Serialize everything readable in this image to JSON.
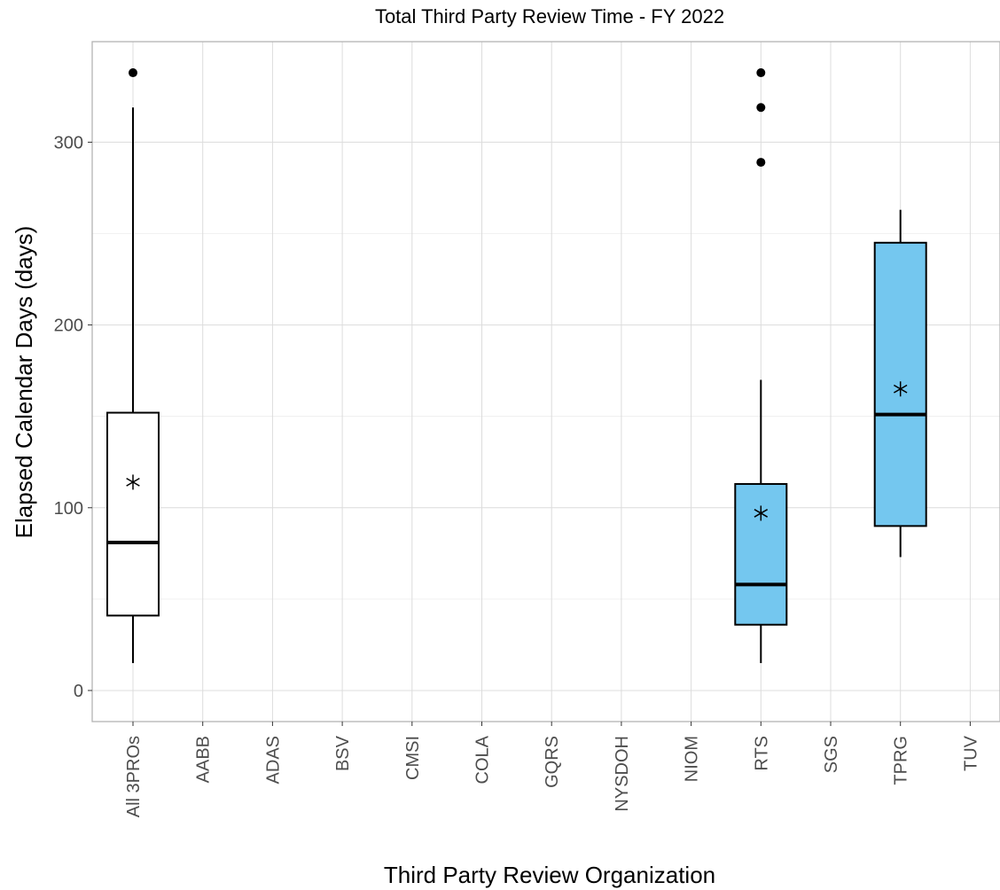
{
  "chart_data": {
    "type": "boxplot",
    "title": "Total Third Party Review Time - FY 2022",
    "xlabel": "Third Party Review Organization",
    "ylabel": "Elapsed Calendar Days (days)",
    "categories": [
      "All 3PROs",
      "AABB",
      "ADAS",
      "BSV",
      "CMSI",
      "COLA",
      "GQRS",
      "NYSDOH",
      "NIOM",
      "RTS",
      "SGS",
      "TPRG",
      "TUV"
    ],
    "ylim": [
      -17,
      355
    ],
    "yticks": [
      0,
      100,
      200,
      300
    ],
    "grid": true,
    "colors": {
      "all": "#ffffff",
      "org": "#74c7ef",
      "line": "#000000",
      "grid": "#dcdcdc",
      "border": "#b3b3b3"
    },
    "boxes": [
      {
        "category": "All 3PROs",
        "fill": "#ffffff",
        "whisker_low": 15,
        "q1": 41,
        "median": 81,
        "q3": 152,
        "whisker_high": 319,
        "mean": 114,
        "outliers": [
          338
        ]
      },
      {
        "category": "RTS",
        "fill": "#74c7ef",
        "whisker_low": 15,
        "q1": 36,
        "median": 58,
        "q3": 113,
        "whisker_high": 170,
        "mean": 97,
        "outliers": [
          338,
          319,
          289
        ]
      },
      {
        "category": "TPRG",
        "fill": "#74c7ef",
        "whisker_low": 73,
        "q1": 90,
        "median": 151,
        "q3": 245,
        "whisker_high": 263,
        "mean": 165,
        "outliers": []
      }
    ]
  }
}
